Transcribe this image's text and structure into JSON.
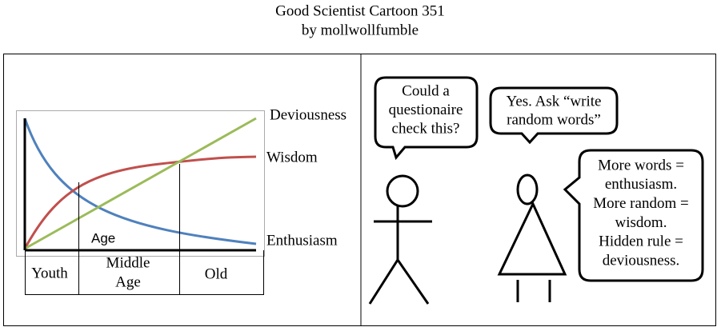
{
  "header": {
    "title": "Good Scientist Cartoon 351",
    "byline": "by mollwollfumble"
  },
  "left_panel": {
    "curve_labels": [
      "Deviousness",
      "Wisdom",
      "Enthusiasm"
    ],
    "axis_label": "Age",
    "stages": [
      "Youth",
      [
        "Middle",
        "Age"
      ],
      "Old"
    ]
  },
  "right_panel": {
    "bubbles": [
      {
        "lines": [
          "Could a",
          "questionaire",
          "check this?"
        ]
      },
      {
        "lines": [
          "Yes. Ask “write",
          "random words”"
        ]
      },
      {
        "lines": [
          "More words =",
          "enthusiasm.",
          "More random =",
          "wisdom.",
          "Hidden rule =",
          "deviousness."
        ]
      }
    ]
  }
}
